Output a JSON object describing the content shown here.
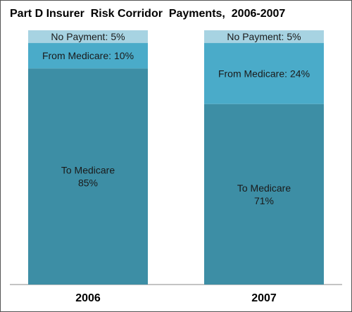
{
  "chart_data": {
    "type": "stacked-bar",
    "title": "Part D Insurer  Risk Corridor  Payments,  2006-2007",
    "categories": [
      "2006",
      "2007"
    ],
    "ylim": [
      0,
      100
    ],
    "series": [
      {
        "name": "To Medicare",
        "color": "#3d8ea5",
        "values": [
          85,
          71
        ],
        "value_labels": [
          "85%",
          "71%"
        ]
      },
      {
        "name": "From Medicare:",
        "color": "#4aabc9",
        "values": [
          10,
          24
        ],
        "value_labels": [
          "10%",
          "24%"
        ]
      },
      {
        "name": "No Payment:",
        "color": "#a7d3e2",
        "values": [
          5,
          5
        ],
        "value_labels": [
          "5%",
          "5%"
        ]
      }
    ]
  }
}
